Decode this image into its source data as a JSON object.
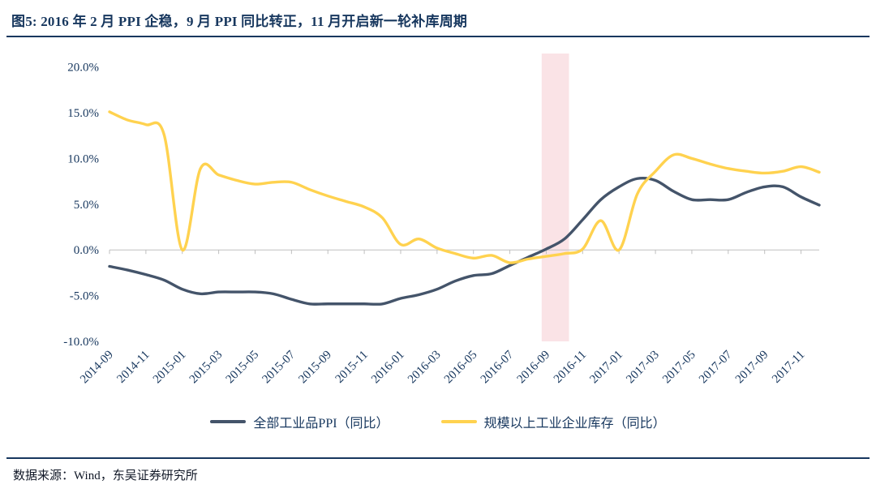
{
  "header": {
    "title": "图5:  2016 年 2 月 PPI 企稳，9 月 PPI 同比转正，11 月开启新一轮补库周期"
  },
  "footer": {
    "source": "数据来源：Wind，东吴证券研究所"
  },
  "chart_data": {
    "type": "line",
    "x": [
      "2014-09",
      "2014-10",
      "2014-11",
      "2014-12",
      "2015-01",
      "2015-02",
      "2015-03",
      "2015-04",
      "2015-05",
      "2015-06",
      "2015-07",
      "2015-08",
      "2015-09",
      "2015-10",
      "2015-11",
      "2015-12",
      "2016-01",
      "2016-02",
      "2016-03",
      "2016-04",
      "2016-05",
      "2016-06",
      "2016-07",
      "2016-08",
      "2016-09",
      "2016-10",
      "2016-11",
      "2016-12",
      "2017-01",
      "2017-02",
      "2017-03",
      "2017-04",
      "2017-05",
      "2017-06",
      "2017-07",
      "2017-08",
      "2017-09",
      "2017-10",
      "2017-11",
      "2017-12"
    ],
    "series": [
      {
        "name": "全部工业品PPI（同比）",
        "color": "#44546A",
        "values": [
          -1.8,
          -2.2,
          -2.7,
          -3.3,
          -4.3,
          -4.8,
          -4.6,
          -4.6,
          -4.6,
          -4.8,
          -5.4,
          -5.9,
          -5.9,
          -5.9,
          -5.9,
          -5.9,
          -5.3,
          -4.9,
          -4.3,
          -3.4,
          -2.8,
          -2.6,
          -1.7,
          -0.8,
          0.1,
          1.2,
          3.3,
          5.5,
          6.9,
          7.8,
          7.6,
          6.4,
          5.5,
          5.5,
          5.5,
          6.3,
          6.9,
          6.9,
          5.8,
          4.9
        ]
      },
      {
        "name": "规模以上工业企业库存（同比）",
        "color": "#FFD24F",
        "values": [
          15.1,
          14.2,
          13.7,
          12.6,
          0.0,
          8.9,
          8.2,
          7.6,
          7.2,
          7.4,
          7.4,
          6.6,
          5.9,
          5.3,
          4.7,
          3.5,
          0.6,
          1.2,
          0.2,
          -0.4,
          -0.9,
          -0.6,
          -1.4,
          -1.0,
          -0.7,
          -0.4,
          0.1,
          3.2,
          0.0,
          6.1,
          8.6,
          10.4,
          10.0,
          9.4,
          8.9,
          8.6,
          8.4,
          8.6,
          9.1,
          8.5
        ]
      }
    ],
    "y_ticks": [
      20,
      15,
      10,
      5,
      0,
      -5,
      -10
    ],
    "y_tick_labels": [
      "20.0%",
      "15.0%",
      "10.0%",
      "5.0%",
      "0.0%",
      "-5.0%",
      "-10.0%"
    ],
    "ylim": [
      -10,
      21.3
    ],
    "x_tick_every": 2,
    "highlight_band": {
      "start": "2016-09",
      "end": "2016-10",
      "color": "#F7D4D8"
    },
    "grid": false,
    "legend_position": "bottom",
    "axis_color": "#BFBFBF"
  }
}
